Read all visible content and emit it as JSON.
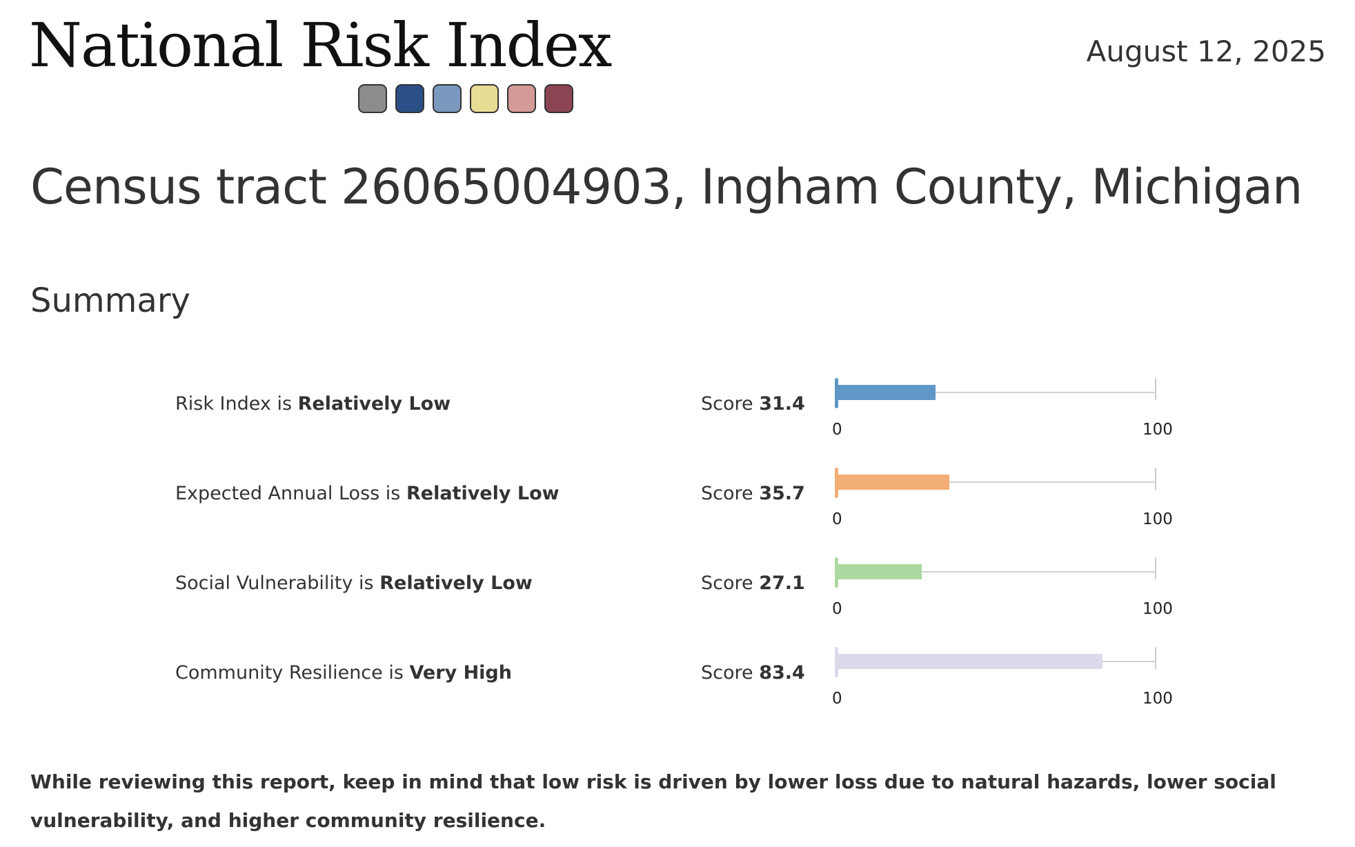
{
  "header": {
    "title": "National Risk Index",
    "date": "August 12, 2025",
    "swatches": [
      "#8c8c8c",
      "#2b4f87",
      "#7b98bf",
      "#e9dc93",
      "#d49a95",
      "#8b4452"
    ]
  },
  "area_title": "Census tract 26065004903, Ingham County, Michigan",
  "summary": {
    "title": "Summary",
    "scale_min": "0",
    "scale_max": "100",
    "score_prefix": "Score",
    "rows": [
      {
        "label": "Risk Index is",
        "rating": "Relatively Low",
        "score": "31.4",
        "value": 31.4,
        "color": "#5f97c7"
      },
      {
        "label": "Expected Annual Loss is",
        "rating": "Relatively Low",
        "score": "35.7",
        "value": 35.7,
        "color": "#f2ae74"
      },
      {
        "label": "Social Vulnerability is",
        "rating": "Relatively Low",
        "score": "27.1",
        "value": 27.1,
        "color": "#add8a0"
      },
      {
        "label": "Community Resilience is",
        "rating": "Very High",
        "score": "83.4",
        "value": 83.4,
        "color": "#dcdaea"
      }
    ]
  },
  "footnote": "While reviewing this report, keep in mind that low risk is driven by lower loss due to natural hazards, lower social vulnerability, and higher community resilience."
}
